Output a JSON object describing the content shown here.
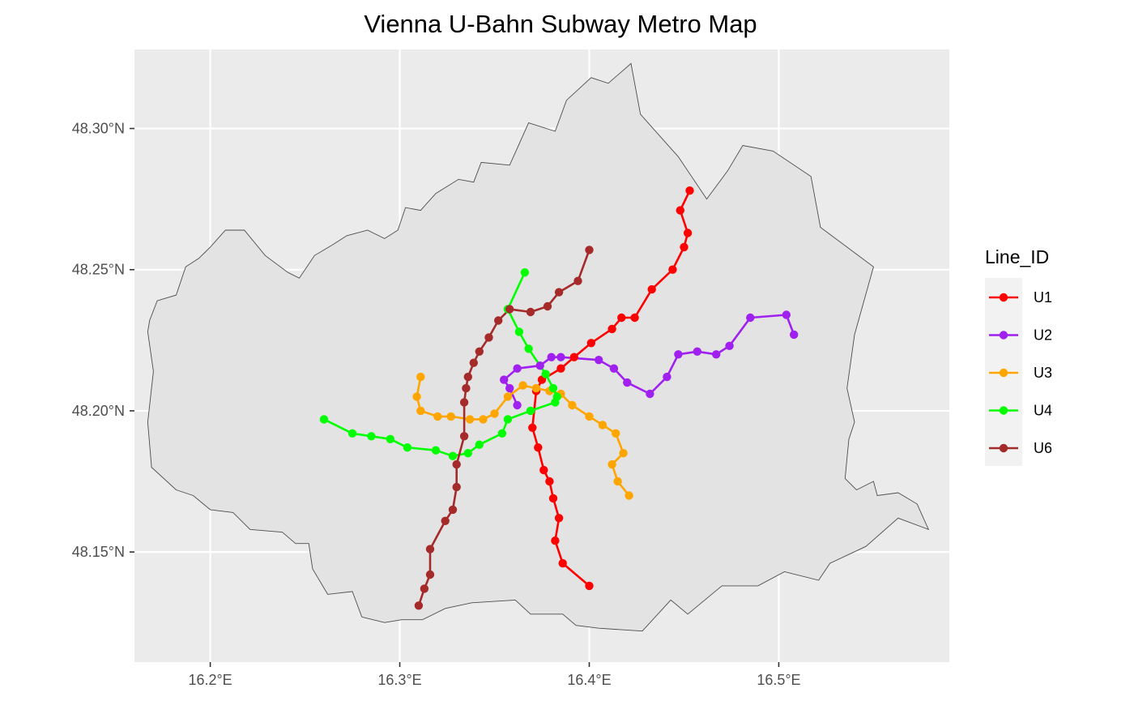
{
  "chart_data": {
    "type": "map",
    "title": "Vienna U-Bahn Subway Metro Map",
    "xlabel": "",
    "ylabel": "",
    "xlim": [
      16.16,
      16.59
    ],
    "ylim": [
      48.111,
      48.328
    ],
    "grid": true,
    "legend_title": "Line_ID",
    "legend_position": "right",
    "x_ticks": [
      {
        "value": 16.2,
        "label": "16.2°E"
      },
      {
        "value": 16.3,
        "label": "16.3°E"
      },
      {
        "value": 16.4,
        "label": "16.4°E"
      },
      {
        "value": 16.5,
        "label": "16.5°E"
      }
    ],
    "y_ticks": [
      {
        "value": 48.15,
        "label": "48.15°N"
      },
      {
        "value": 48.2,
        "label": "48.20°N"
      },
      {
        "value": 48.25,
        "label": "48.25°N"
      },
      {
        "value": 48.3,
        "label": "48.30°N"
      }
    ],
    "boundary": [
      [
        16.182,
        48.172
      ],
      [
        16.191,
        48.17
      ],
      [
        16.2,
        48.165
      ],
      [
        16.212,
        48.164
      ],
      [
        16.221,
        48.158
      ],
      [
        16.238,
        48.157
      ],
      [
        16.245,
        48.153
      ],
      [
        16.252,
        48.153
      ],
      [
        16.254,
        48.144
      ],
      [
        16.262,
        48.135
      ],
      [
        16.275,
        48.136
      ],
      [
        16.28,
        48.127
      ],
      [
        16.292,
        48.125
      ],
      [
        16.301,
        48.126
      ],
      [
        16.312,
        48.126
      ],
      [
        16.324,
        48.13
      ],
      [
        16.338,
        48.132
      ],
      [
        16.361,
        48.133
      ],
      [
        16.369,
        48.128
      ],
      [
        16.386,
        48.128
      ],
      [
        16.393,
        48.124
      ],
      [
        16.405,
        48.123
      ],
      [
        16.428,
        48.122
      ],
      [
        16.443,
        48.133
      ],
      [
        16.452,
        48.128
      ],
      [
        16.47,
        48.138
      ],
      [
        16.489,
        48.138
      ],
      [
        16.503,
        48.143
      ],
      [
        16.521,
        48.14
      ],
      [
        16.527,
        48.146
      ],
      [
        16.546,
        48.152
      ],
      [
        16.563,
        48.162
      ],
      [
        16.579,
        48.158
      ],
      [
        16.573,
        48.167
      ],
      [
        16.563,
        48.171
      ],
      [
        16.552,
        48.17
      ],
      [
        16.55,
        48.175
      ],
      [
        16.541,
        48.172
      ],
      [
        16.535,
        48.176
      ],
      [
        16.537,
        48.19
      ],
      [
        16.54,
        48.196
      ],
      [
        16.536,
        48.208
      ],
      [
        16.54,
        48.227
      ],
      [
        16.55,
        48.251
      ],
      [
        16.536,
        48.258
      ],
      [
        16.522,
        48.265
      ],
      [
        16.517,
        48.283
      ],
      [
        16.497,
        48.292
      ],
      [
        16.481,
        48.294
      ],
      [
        16.473,
        48.285
      ],
      [
        16.462,
        48.275
      ],
      [
        16.447,
        48.29
      ],
      [
        16.427,
        48.305
      ],
      [
        16.422,
        48.323
      ],
      [
        16.41,
        48.316
      ],
      [
        16.401,
        48.318
      ],
      [
        16.388,
        48.31
      ],
      [
        16.382,
        48.299
      ],
      [
        16.368,
        48.302
      ],
      [
        16.358,
        48.287
      ],
      [
        16.343,
        48.288
      ],
      [
        16.339,
        48.281
      ],
      [
        16.331,
        48.282
      ],
      [
        16.319,
        48.277
      ],
      [
        16.311,
        48.271
      ],
      [
        16.303,
        48.272
      ],
      [
        16.299,
        48.264
      ],
      [
        16.292,
        48.261
      ],
      [
        16.283,
        48.264
      ],
      [
        16.272,
        48.262
      ],
      [
        16.265,
        48.259
      ],
      [
        16.255,
        48.255
      ],
      [
        16.247,
        48.247
      ],
      [
        16.241,
        48.249
      ],
      [
        16.229,
        48.255
      ],
      [
        16.218,
        48.264
      ],
      [
        16.208,
        48.264
      ],
      [
        16.2,
        48.258
      ],
      [
        16.194,
        48.254
      ],
      [
        16.187,
        48.251
      ],
      [
        16.182,
        48.241
      ],
      [
        16.172,
        48.239
      ],
      [
        16.168,
        48.232
      ],
      [
        16.167,
        48.228
      ],
      [
        16.17,
        48.214
      ],
      [
        16.167,
        48.196
      ],
      [
        16.169,
        48.18
      ],
      [
        16.182,
        48.172
      ]
    ],
    "series": [
      {
        "name": "U1",
        "color": "#ff0000",
        "points": [
          [
            16.4,
            48.138
          ],
          [
            16.386,
            48.146
          ],
          [
            16.382,
            48.154
          ],
          [
            16.384,
            48.162
          ],
          [
            16.381,
            48.169
          ],
          [
            16.379,
            48.175
          ],
          [
            16.376,
            48.179
          ],
          [
            16.373,
            48.187
          ],
          [
            16.37,
            48.194
          ],
          [
            16.372,
            48.207
          ],
          [
            16.375,
            48.211
          ],
          [
            16.385,
            48.215
          ],
          [
            16.392,
            48.219
          ],
          [
            16.401,
            48.224
          ],
          [
            16.412,
            48.229
          ],
          [
            16.417,
            48.233
          ],
          [
            16.424,
            48.233
          ],
          [
            16.433,
            48.243
          ],
          [
            16.444,
            48.25
          ],
          [
            16.45,
            48.258
          ],
          [
            16.452,
            48.263
          ],
          [
            16.448,
            48.271
          ],
          [
            16.453,
            48.278
          ]
        ]
      },
      {
        "name": "U2",
        "color": "#a020f0",
        "points": [
          [
            16.362,
            48.202
          ],
          [
            16.358,
            48.208
          ],
          [
            16.355,
            48.211
          ],
          [
            16.362,
            48.215
          ],
          [
            16.374,
            48.216
          ],
          [
            16.38,
            48.219
          ],
          [
            16.385,
            48.219
          ],
          [
            16.405,
            48.218
          ],
          [
            16.413,
            48.215
          ],
          [
            16.42,
            48.21
          ],
          [
            16.432,
            48.206
          ],
          [
            16.441,
            48.212
          ],
          [
            16.447,
            48.22
          ],
          [
            16.457,
            48.221
          ],
          [
            16.467,
            48.22
          ],
          [
            16.474,
            48.223
          ],
          [
            16.485,
            48.233
          ],
          [
            16.504,
            48.234
          ],
          [
            16.508,
            48.227
          ]
        ]
      },
      {
        "name": "U3",
        "color": "#ffa500",
        "points": [
          [
            16.311,
            48.212
          ],
          [
            16.309,
            48.205
          ],
          [
            16.311,
            48.2
          ],
          [
            16.32,
            48.198
          ],
          [
            16.327,
            48.198
          ],
          [
            16.337,
            48.197
          ],
          [
            16.344,
            48.197
          ],
          [
            16.35,
            48.199
          ],
          [
            16.357,
            48.205
          ],
          [
            16.365,
            48.209
          ],
          [
            16.372,
            48.208
          ],
          [
            16.379,
            48.207
          ],
          [
            16.385,
            48.206
          ],
          [
            16.391,
            48.202
          ],
          [
            16.4,
            48.198
          ],
          [
            16.407,
            48.195
          ],
          [
            16.414,
            48.192
          ],
          [
            16.418,
            48.185
          ],
          [
            16.412,
            48.181
          ],
          [
            16.415,
            48.175
          ],
          [
            16.421,
            48.17
          ]
        ]
      },
      {
        "name": "U4",
        "color": "#00ff00",
        "points": [
          [
            16.366,
            48.249
          ],
          [
            16.357,
            48.236
          ],
          [
            16.363,
            48.228
          ],
          [
            16.368,
            48.222
          ],
          [
            16.377,
            48.213
          ],
          [
            16.381,
            48.208
          ],
          [
            16.383,
            48.205
          ],
          [
            16.382,
            48.203
          ],
          [
            16.369,
            48.2
          ],
          [
            16.357,
            48.197
          ],
          [
            16.354,
            48.192
          ],
          [
            16.342,
            48.188
          ],
          [
            16.336,
            48.185
          ],
          [
            16.328,
            48.184
          ],
          [
            16.319,
            48.186
          ],
          [
            16.304,
            48.187
          ],
          [
            16.295,
            48.19
          ],
          [
            16.285,
            48.191
          ],
          [
            16.275,
            48.192
          ],
          [
            16.26,
            48.197
          ]
        ]
      },
      {
        "name": "U6",
        "color": "#a52a2a",
        "points": [
          [
            16.31,
            48.131
          ],
          [
            16.313,
            48.137
          ],
          [
            16.316,
            48.142
          ],
          [
            16.316,
            48.151
          ],
          [
            16.324,
            48.161
          ],
          [
            16.328,
            48.165
          ],
          [
            16.33,
            48.173
          ],
          [
            16.33,
            48.181
          ],
          [
            16.334,
            48.191
          ],
          [
            16.334,
            48.203
          ],
          [
            16.335,
            48.208
          ],
          [
            16.336,
            48.212
          ],
          [
            16.339,
            48.217
          ],
          [
            16.342,
            48.221
          ],
          [
            16.347,
            48.226
          ],
          [
            16.352,
            48.232
          ],
          [
            16.358,
            48.236
          ],
          [
            16.369,
            48.235
          ],
          [
            16.378,
            48.237
          ],
          [
            16.384,
            48.242
          ],
          [
            16.394,
            48.246
          ],
          [
            16.4,
            48.257
          ]
        ]
      }
    ]
  }
}
